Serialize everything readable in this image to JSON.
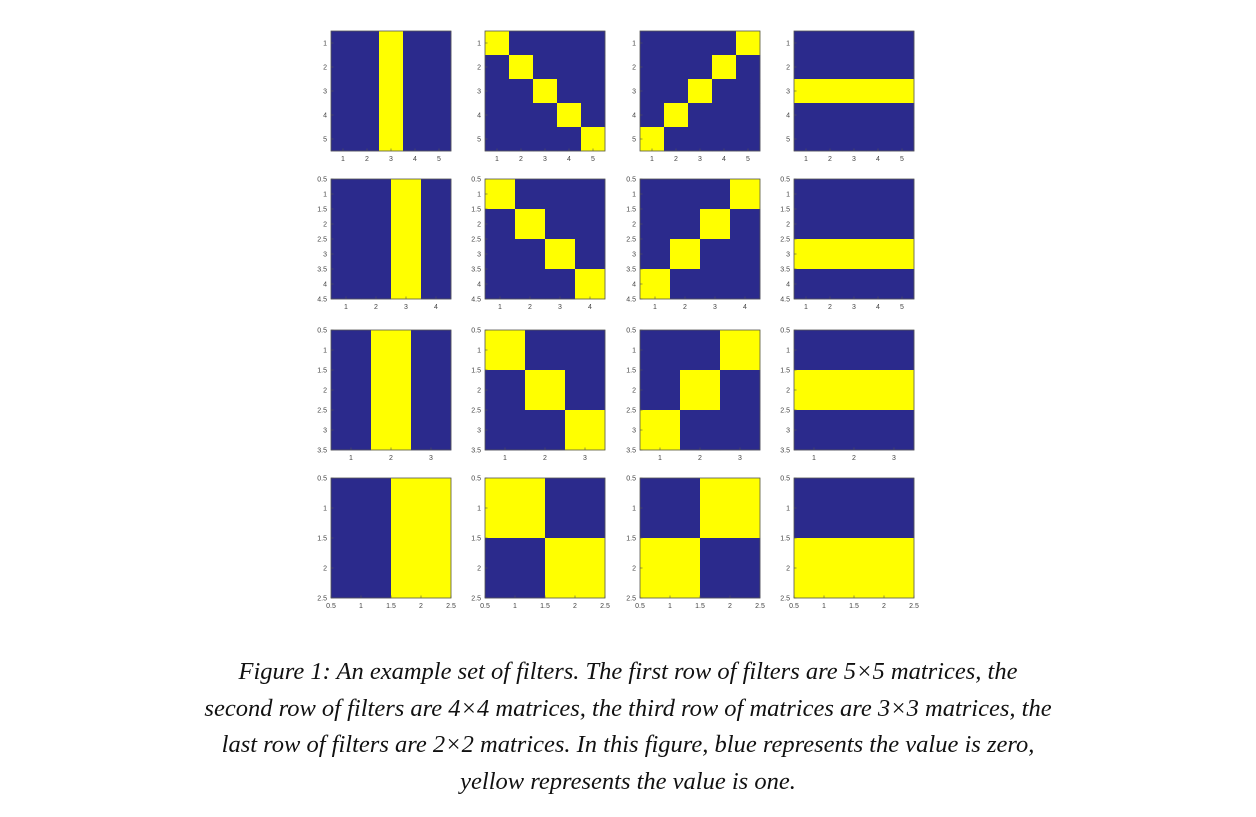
{
  "colors": {
    "zero": "#2b2a8c",
    "one": "#ffff00",
    "frame": "#555555"
  },
  "chart_data": {
    "type": "heatmap",
    "title": "",
    "xlabel": "",
    "ylabel": "",
    "legend": "none",
    "grid": false,
    "value_map": {
      "0": "blue",
      "1": "yellow"
    },
    "rows": [
      {
        "size": 5,
        "x_ticks": [
          "1",
          "2",
          "3",
          "4",
          "5"
        ],
        "y_ticks": [
          "1",
          "2",
          "3",
          "4",
          "5"
        ],
        "filters": [
          [
            [
              0,
              0,
              1,
              0,
              0
            ],
            [
              0,
              0,
              1,
              0,
              0
            ],
            [
              0,
              0,
              1,
              0,
              0
            ],
            [
              0,
              0,
              1,
              0,
              0
            ],
            [
              0,
              0,
              1,
              0,
              0
            ]
          ],
          [
            [
              1,
              0,
              0,
              0,
              0
            ],
            [
              0,
              1,
              0,
              0,
              0
            ],
            [
              0,
              0,
              1,
              0,
              0
            ],
            [
              0,
              0,
              0,
              1,
              0
            ],
            [
              0,
              0,
              0,
              0,
              1
            ]
          ],
          [
            [
              0,
              0,
              0,
              0,
              1
            ],
            [
              0,
              0,
              0,
              1,
              0
            ],
            [
              0,
              0,
              1,
              0,
              0
            ],
            [
              0,
              1,
              0,
              0,
              0
            ],
            [
              1,
              0,
              0,
              0,
              0
            ]
          ],
          [
            [
              0,
              0,
              0,
              0,
              0
            ],
            [
              0,
              0,
              0,
              0,
              0
            ],
            [
              1,
              1,
              1,
              1,
              1
            ],
            [
              0,
              0,
              0,
              0,
              0
            ],
            [
              0,
              0,
              0,
              0,
              0
            ]
          ]
        ]
      },
      {
        "size": 4,
        "x_ticks": [
          "1",
          "2",
          "3",
          "4"
        ],
        "x_ticks_last": [
          "1",
          "2",
          "3",
          "4",
          "5"
        ],
        "y_ticks": [
          "0.5",
          "1",
          "1.5",
          "2",
          "2.5",
          "3",
          "3.5",
          "4",
          "4.5"
        ],
        "filters": [
          [
            [
              0,
              0,
              1,
              0
            ],
            [
              0,
              0,
              1,
              0
            ],
            [
              0,
              0,
              1,
              0
            ],
            [
              0,
              0,
              1,
              0
            ]
          ],
          [
            [
              1,
              0,
              0,
              0
            ],
            [
              0,
              1,
              0,
              0
            ],
            [
              0,
              0,
              1,
              0
            ],
            [
              0,
              0,
              0,
              1
            ]
          ],
          [
            [
              0,
              0,
              0,
              1
            ],
            [
              0,
              0,
              1,
              0
            ],
            [
              0,
              1,
              0,
              0
            ],
            [
              1,
              0,
              0,
              0
            ]
          ],
          [
            [
              0,
              0,
              0,
              0
            ],
            [
              0,
              0,
              0,
              0
            ],
            [
              1,
              1,
              1,
              1
            ],
            [
              0,
              0,
              0,
              0
            ]
          ]
        ]
      },
      {
        "size": 3,
        "x_ticks": [
          "1",
          "2",
          "3"
        ],
        "y_ticks": [
          "0.5",
          "1",
          "1.5",
          "2",
          "2.5",
          "3",
          "3.5"
        ],
        "filters": [
          [
            [
              0,
              1,
              0
            ],
            [
              0,
              1,
              0
            ],
            [
              0,
              1,
              0
            ]
          ],
          [
            [
              1,
              0,
              0
            ],
            [
              0,
              1,
              0
            ],
            [
              0,
              0,
              1
            ]
          ],
          [
            [
              0,
              0,
              1
            ],
            [
              0,
              1,
              0
            ],
            [
              1,
              0,
              0
            ]
          ],
          [
            [
              0,
              0,
              0
            ],
            [
              1,
              1,
              1
            ],
            [
              0,
              0,
              0
            ]
          ]
        ]
      },
      {
        "size": 2,
        "x_ticks": [
          "0.5",
          "1",
          "1.5",
          "2",
          "2.5"
        ],
        "y_ticks": [
          "0.5",
          "1",
          "1.5",
          "2",
          "2.5"
        ],
        "filters": [
          [
            [
              0,
              1
            ],
            [
              0,
              1
            ]
          ],
          [
            [
              1,
              0
            ],
            [
              0,
              1
            ]
          ],
          [
            [
              0,
              1
            ],
            [
              1,
              0
            ]
          ],
          [
            [
              0,
              0
            ],
            [
              1,
              1
            ]
          ]
        ]
      }
    ]
  },
  "caption": {
    "lines": [
      "Figure 1: An example set of filters. The first row of filters are 5×5 matrices, the",
      "second row of filters are 4×4 matrices, the third row of matrices are 3×3 matrices, the",
      "last row of filters are 2×2 matrices. In this figure, blue represents the value is zero,",
      "yellow represents the value is one."
    ]
  }
}
